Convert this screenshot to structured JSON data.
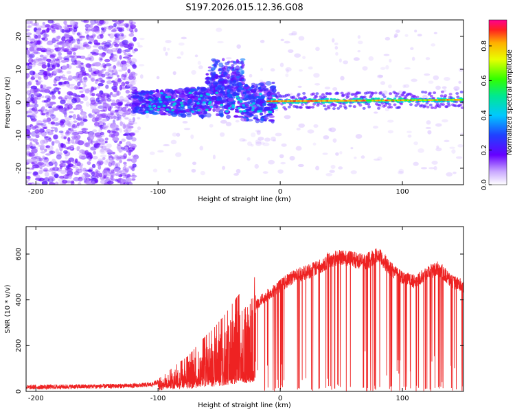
{
  "title": "S197.2026.015.12.36.G08",
  "colors": {
    "snr_line": "#ee2222",
    "axes": "#000000",
    "background": "#ffffff"
  },
  "chart_data": [
    {
      "type": "heatmap",
      "name": "spectrogram",
      "xlabel": "Height of straight line (km)",
      "ylabel": "Frequency (Hz)",
      "xlim": [
        -208,
        150
      ],
      "ylim": [
        -25,
        25
      ],
      "xticks": [
        -200,
        -100,
        0,
        100
      ],
      "yticks": [
        -20,
        -10,
        0,
        10,
        20
      ],
      "colorbar": {
        "label": "Normalized spectral amplitude",
        "range": [
          0,
          0.95
        ],
        "ticks": [
          0,
          0.2,
          0.4,
          0.6,
          0.8
        ],
        "tick_labels": [
          "0.0",
          "0.2",
          "0.4",
          "0.6",
          "0.8"
        ]
      },
      "features": [
        {
          "label": "broadband noise",
          "x_range": [
            -208,
            -120
          ],
          "freq_range": [
            -25,
            25
          ],
          "amplitude": 0.05
        },
        {
          "label": "emerging signal",
          "x_range": [
            -120,
            -10
          ],
          "freq_center": 0,
          "freq_spread": 5,
          "amplitude": 0.15
        },
        {
          "label": "signal track",
          "x_range": [
            -10,
            150
          ],
          "freq_center": 0.5,
          "amplitude": 0.9
        }
      ]
    },
    {
      "type": "line",
      "name": "snr",
      "xlabel": "Height of straight line (km)",
      "ylabel": "SNR (10 * v/v)",
      "xlim": [
        -208,
        150
      ],
      "ylim": [
        0,
        720
      ],
      "xticks": [
        -200,
        -100,
        0,
        100
      ],
      "yticks": [
        0,
        200,
        400,
        600
      ],
      "series": [
        {
          "name": "SNR",
          "x": [
            -208,
            -180,
            -150,
            -120,
            -105,
            -95,
            -85,
            -75,
            -65,
            -55,
            -45,
            -35,
            -25,
            -15,
            -5,
            0,
            10,
            20,
            30,
            40,
            50,
            60,
            70,
            80,
            90,
            100,
            110,
            120,
            130,
            140,
            150
          ],
          "values": [
            18,
            20,
            22,
            25,
            30,
            55,
            90,
            120,
            170,
            210,
            260,
            320,
            360,
            420,
            460,
            480,
            520,
            540,
            560,
            600,
            610,
            600,
            590,
            620,
            560,
            520,
            500,
            540,
            560,
            500,
            480
          ]
        }
      ]
    }
  ]
}
